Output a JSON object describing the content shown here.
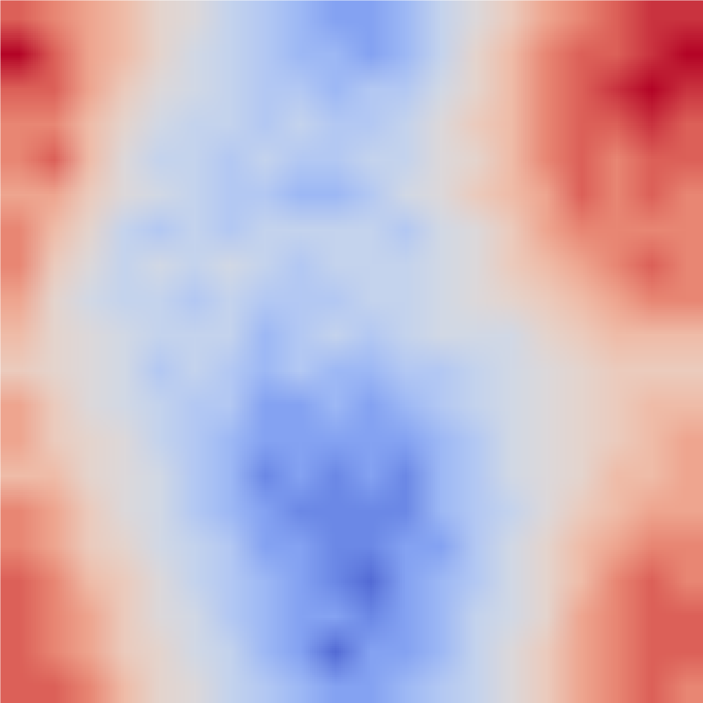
{
  "chart_data": {
    "type": "heatmap",
    "tick_labels": false,
    "cells": [
      [
        0.6,
        0.5,
        0.4,
        0.3,
        0.1,
        0.0,
        -0.2,
        -0.3,
        -0.4,
        -0.5,
        -0.5,
        -0.4,
        -0.2,
        0.0,
        0.2,
        0.4,
        0.5,
        0.6,
        0.7,
        0.7
      ],
      [
        0.8,
        0.6,
        0.4,
        0.3,
        0.1,
        -0.1,
        -0.2,
        -0.3,
        -0.4,
        -0.4,
        -0.5,
        -0.4,
        -0.2,
        0.1,
        0.3,
        0.5,
        0.6,
        0.6,
        0.7,
        0.8
      ],
      [
        0.6,
        0.6,
        0.4,
        0.2,
        0.0,
        -0.1,
        -0.2,
        -0.3,
        -0.3,
        -0.4,
        -0.3,
        -0.3,
        -0.1,
        0.1,
        0.3,
        0.5,
        0.6,
        0.7,
        0.8,
        0.7
      ],
      [
        0.5,
        0.5,
        0.3,
        0.1,
        -0.1,
        -0.2,
        -0.2,
        -0.3,
        -0.2,
        -0.3,
        -0.3,
        -0.2,
        0.0,
        0.2,
        0.3,
        0.5,
        0.6,
        0.6,
        0.7,
        0.6
      ],
      [
        0.5,
        0.6,
        0.3,
        0.0,
        -0.2,
        -0.2,
        -0.3,
        -0.2,
        -0.3,
        -0.3,
        -0.2,
        -0.2,
        0.0,
        0.1,
        0.3,
        0.5,
        0.6,
        0.5,
        0.6,
        0.6
      ],
      [
        0.4,
        0.4,
        0.2,
        0.0,
        -0.1,
        -0.2,
        -0.3,
        -0.3,
        -0.4,
        -0.4,
        -0.3,
        -0.1,
        0.0,
        0.2,
        0.3,
        0.4,
        0.6,
        0.5,
        0.6,
        0.5
      ],
      [
        0.5,
        0.3,
        0.1,
        -0.2,
        -0.3,
        -0.2,
        -0.3,
        -0.2,
        -0.2,
        -0.2,
        -0.2,
        -0.3,
        -0.1,
        0.0,
        0.2,
        0.4,
        0.5,
        0.5,
        0.5,
        0.5
      ],
      [
        0.5,
        0.2,
        0.0,
        -0.2,
        -0.1,
        -0.2,
        -0.1,
        -0.2,
        -0.3,
        -0.2,
        -0.2,
        -0.2,
        -0.1,
        0.0,
        0.2,
        0.3,
        0.4,
        0.5,
        0.6,
        0.5
      ],
      [
        0.4,
        0.1,
        -0.1,
        -0.2,
        -0.2,
        -0.3,
        -0.2,
        -0.3,
        -0.3,
        -0.3,
        -0.2,
        -0.2,
        -0.1,
        0.0,
        0.1,
        0.2,
        0.3,
        0.4,
        0.5,
        0.5
      ],
      [
        0.3,
        0.1,
        0.0,
        -0.1,
        -0.2,
        -0.2,
        -0.2,
        -0.4,
        -0.3,
        -0.2,
        -0.3,
        -0.2,
        -0.1,
        -0.1,
        -0.1,
        0.1,
        0.2,
        0.3,
        0.3,
        0.3
      ],
      [
        0.2,
        0.1,
        0.0,
        -0.1,
        -0.3,
        -0.2,
        -0.3,
        -0.4,
        -0.3,
        -0.4,
        -0.4,
        -0.3,
        -0.3,
        -0.2,
        -0.1,
        0.0,
        0.1,
        0.2,
        0.2,
        0.2
      ],
      [
        0.4,
        0.2,
        0.0,
        -0.1,
        -0.2,
        -0.3,
        -0.3,
        -0.5,
        -0.5,
        -0.4,
        -0.5,
        -0.4,
        -0.3,
        -0.2,
        -0.1,
        0.0,
        0.1,
        0.2,
        0.3,
        0.3
      ],
      [
        0.4,
        0.2,
        0.1,
        0.0,
        -0.2,
        -0.3,
        -0.4,
        -0.5,
        -0.5,
        -0.5,
        -0.5,
        -0.5,
        -0.4,
        -0.3,
        -0.1,
        0.0,
        0.1,
        0.2,
        0.3,
        0.4
      ],
      [
        0.3,
        0.3,
        0.1,
        0.0,
        -0.1,
        -0.3,
        -0.4,
        -0.6,
        -0.5,
        -0.6,
        -0.5,
        -0.6,
        -0.4,
        -0.3,
        -0.1,
        0.0,
        0.1,
        0.3,
        0.3,
        0.4
      ],
      [
        0.5,
        0.4,
        0.2,
        0.0,
        -0.1,
        -0.3,
        -0.4,
        -0.5,
        -0.6,
        -0.6,
        -0.6,
        -0.6,
        -0.4,
        -0.3,
        -0.2,
        0.0,
        0.2,
        0.3,
        0.4,
        0.4
      ],
      [
        0.5,
        0.4,
        0.2,
        0.1,
        -0.1,
        -0.2,
        -0.3,
        -0.5,
        -0.5,
        -0.6,
        -0.6,
        -0.5,
        -0.5,
        -0.3,
        -0.1,
        0.1,
        0.3,
        0.4,
        0.5,
        0.5
      ],
      [
        0.6,
        0.5,
        0.3,
        0.2,
        0.0,
        -0.2,
        -0.3,
        -0.4,
        -0.5,
        -0.6,
        -0.7,
        -0.5,
        -0.4,
        -0.3,
        -0.1,
        0.1,
        0.3,
        0.5,
        0.6,
        0.5
      ],
      [
        0.6,
        0.5,
        0.4,
        0.2,
        0.0,
        -0.1,
        -0.3,
        -0.4,
        -0.5,
        -0.5,
        -0.6,
        -0.5,
        -0.4,
        -0.2,
        -0.1,
        0.1,
        0.4,
        0.5,
        0.6,
        0.6
      ],
      [
        0.6,
        0.5,
        0.4,
        0.2,
        0.1,
        -0.1,
        -0.2,
        -0.4,
        -0.5,
        -0.7,
        -0.5,
        -0.5,
        -0.4,
        -0.2,
        0.0,
        0.2,
        0.4,
        0.5,
        0.6,
        0.6
      ],
      [
        0.6,
        0.6,
        0.5,
        0.3,
        0.1,
        0.0,
        -0.2,
        -0.3,
        -0.4,
        -0.5,
        -0.5,
        -0.4,
        -0.3,
        -0.2,
        0.0,
        0.2,
        0.4,
        0.5,
        0.6,
        0.5
      ]
    ]
  }
}
